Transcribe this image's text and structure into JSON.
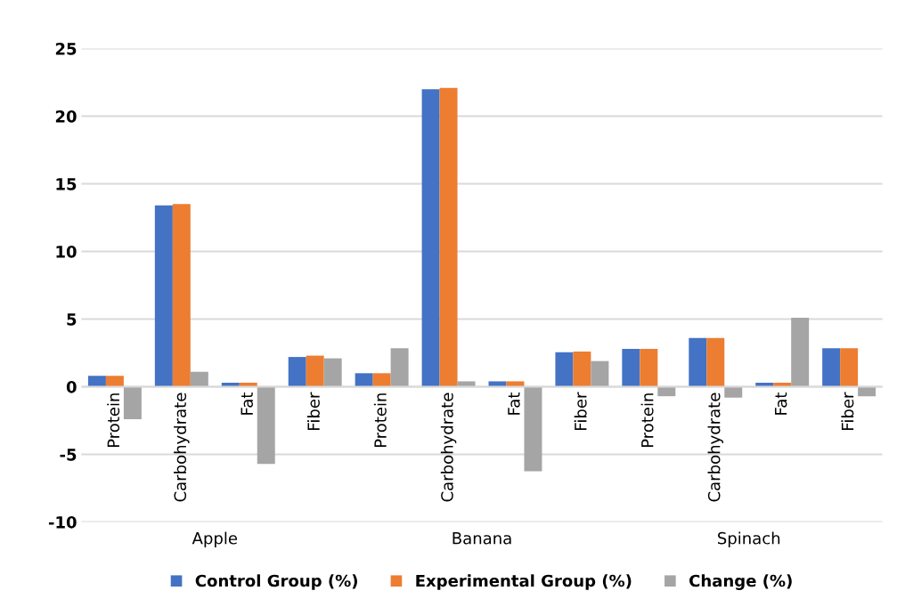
{
  "chart_data": {
    "type": "bar",
    "categories": [
      "Protein",
      "Carbohydrate",
      "Fat",
      "Fiber",
      "Protein",
      "Carbohydrate",
      "Fat",
      "Fiber",
      "Protein",
      "Carbohydrate",
      "Fat",
      "Fiber"
    ],
    "series": [
      {
        "name": "Control Group (%)",
        "color": "#4472c4",
        "values": [
          0.8,
          13.4,
          0.3,
          2.2,
          1.0,
          22.0,
          0.4,
          2.55,
          2.8,
          3.6,
          0.3,
          2.85
        ]
      },
      {
        "name": "Experimental Group (%)",
        "color": "#ed7d31",
        "values": [
          0.8,
          13.5,
          0.3,
          2.3,
          1.0,
          22.1,
          0.4,
          2.6,
          2.8,
          3.6,
          0.3,
          2.85
        ]
      },
      {
        "name": "Change (%)",
        "color": "#a5a5a5",
        "values": [
          -2.4,
          1.1,
          -5.7,
          2.1,
          2.85,
          0.4,
          -6.25,
          1.9,
          -0.7,
          -0.8,
          5.1,
          -0.7
        ]
      }
    ],
    "annotations": [
      "Apple",
      "Banana",
      "Spinach"
    ],
    "ylim": [
      -10,
      25
    ],
    "yticks": [
      -10,
      -5,
      0,
      5,
      10,
      15,
      20,
      25
    ],
    "grid": "y",
    "legend": "bottom"
  }
}
